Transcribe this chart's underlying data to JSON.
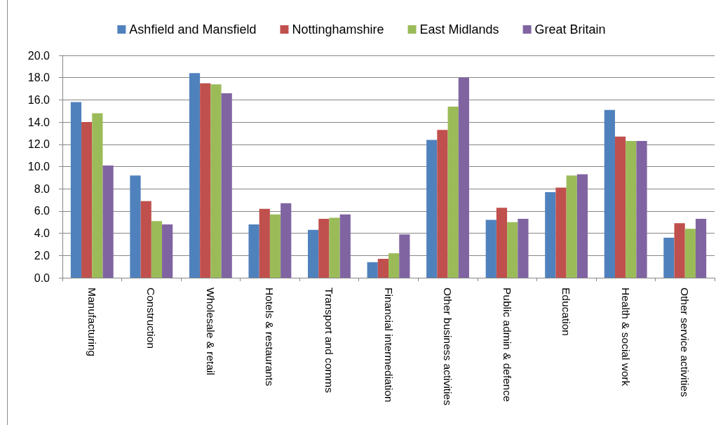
{
  "chart_data": {
    "type": "bar",
    "categories": [
      "Manufacturing",
      "Construction",
      "Wholesale & retail",
      "Hotels & restaurants",
      "Transport and comms",
      "Financial intermediation",
      "Other business activities",
      "Public admin & defence",
      "Education",
      "Health & social work",
      "Other service activities"
    ],
    "series": [
      {
        "name": "Ashfield and Mansfield",
        "color": "#4f81bd",
        "values": [
          15.8,
          9.2,
          18.4,
          4.8,
          4.3,
          1.4,
          12.4,
          5.2,
          7.7,
          15.1,
          3.6
        ]
      },
      {
        "name": "Nottinghamshire",
        "color": "#c0504d",
        "values": [
          14.0,
          6.9,
          17.5,
          6.2,
          5.3,
          1.7,
          13.3,
          6.3,
          8.1,
          12.7,
          4.9
        ]
      },
      {
        "name": "East Midlands",
        "color": "#9bbb59",
        "values": [
          14.8,
          5.1,
          17.4,
          5.7,
          5.4,
          2.2,
          15.4,
          5.0,
          9.2,
          12.3,
          4.4
        ]
      },
      {
        "name": "Great Britain",
        "color": "#8064a2",
        "values": [
          10.1,
          4.8,
          16.6,
          6.7,
          5.7,
          3.9,
          18.0,
          5.3,
          9.3,
          12.3,
          5.3
        ]
      }
    ],
    "ylim": [
      0,
      20
    ],
    "yticks": [
      {
        "value": 0,
        "label": "0.0"
      },
      {
        "value": 2,
        "label": "2.0"
      },
      {
        "value": 4,
        "label": "4.0"
      },
      {
        "value": 6,
        "label": "6.0"
      },
      {
        "value": 8,
        "label": "8.0"
      },
      {
        "value": 10,
        "label": "10.0"
      },
      {
        "value": 12,
        "label": "12.0"
      },
      {
        "value": 14,
        "label": "14.0"
      },
      {
        "value": 16,
        "label": "16.0"
      },
      {
        "value": 18,
        "label": "18.0"
      },
      {
        "value": 20,
        "label": "20.0"
      }
    ],
    "grid": "y",
    "legend": "top"
  }
}
